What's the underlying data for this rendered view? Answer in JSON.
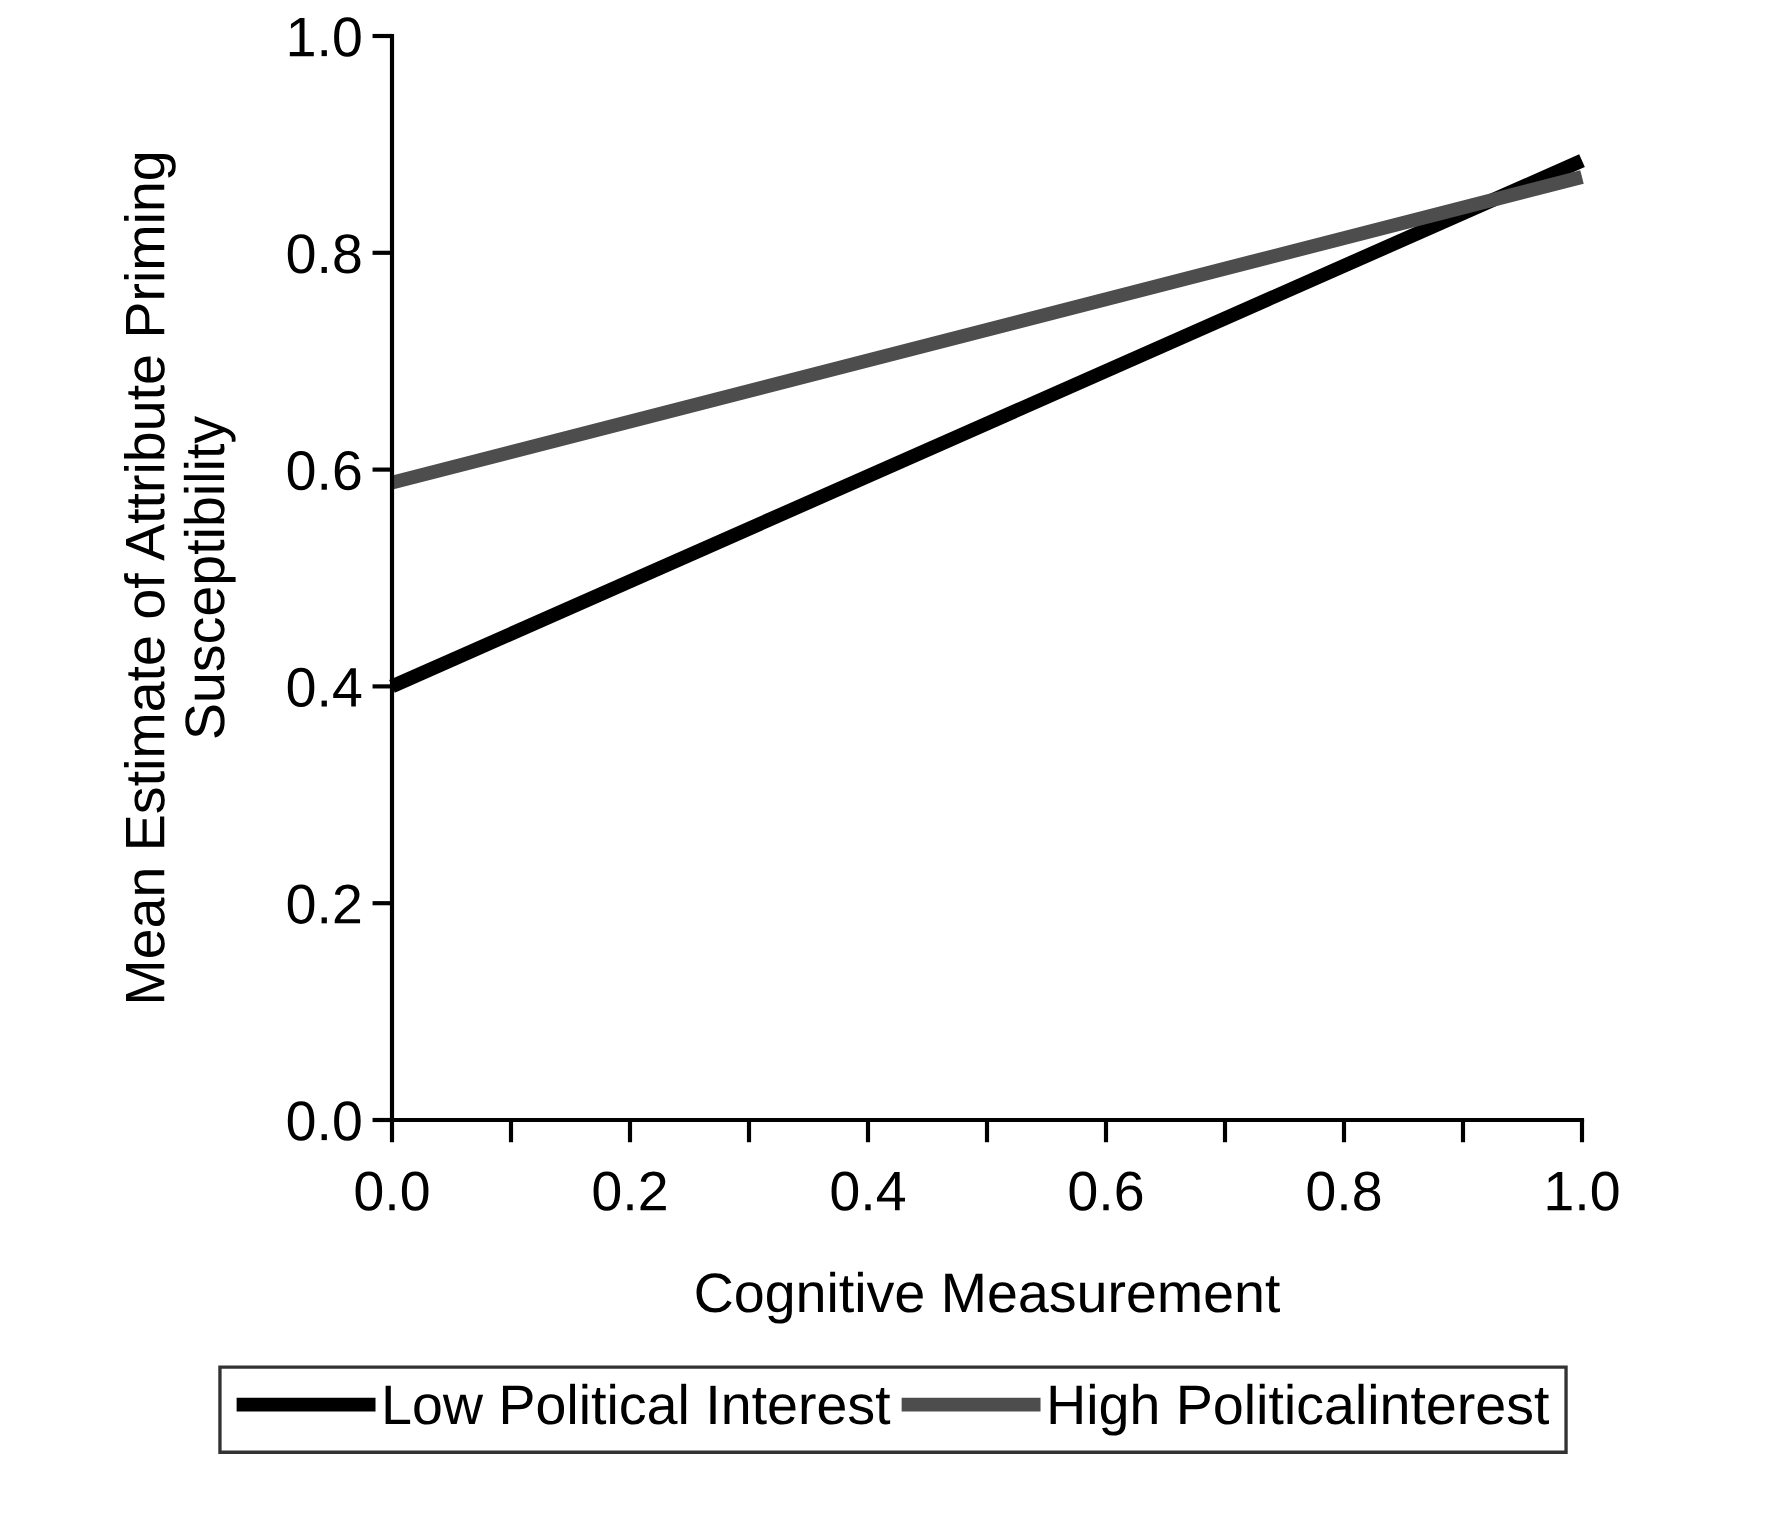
{
  "chart_data": {
    "type": "line",
    "xlabel": "Cognitive Measurement",
    "ylabel": "Mean Estimate of Attribute Priming\nSusceptibility",
    "x": [
      0,
      1
    ],
    "series": [
      {
        "name": "Low Political Interest",
        "color": "#000000",
        "values": [
          0.4,
          0.885
        ]
      },
      {
        "name": "High Politicalinterest",
        "color": "#4d4d4d",
        "values": [
          0.588,
          0.87
        ]
      }
    ],
    "xlim": [
      0,
      1
    ],
    "ylim": [
      0,
      1
    ],
    "xticks": [
      {
        "value": 0.0,
        "label": "0.0"
      },
      {
        "value": 0.1,
        "label": null
      },
      {
        "value": 0.2,
        "label": "0.2"
      },
      {
        "value": 0.3,
        "label": null
      },
      {
        "value": 0.4,
        "label": "0.4"
      },
      {
        "value": 0.5,
        "label": null
      },
      {
        "value": 0.6,
        "label": "0.6"
      },
      {
        "value": 0.7,
        "label": null
      },
      {
        "value": 0.8,
        "label": "0.8"
      },
      {
        "value": 0.9,
        "label": null
      },
      {
        "value": 1.0,
        "label": "1.0"
      }
    ],
    "yticks": [
      {
        "value": 0.0,
        "label": "0.0"
      },
      {
        "value": 0.2,
        "label": "0.2"
      },
      {
        "value": 0.4,
        "label": "0.4"
      },
      {
        "value": 0.6,
        "label": "0.6"
      },
      {
        "value": 0.8,
        "label": "0.8"
      },
      {
        "value": 1.0,
        "label": "1.0"
      }
    ],
    "grid": false,
    "legend": "bottom",
    "marker": "none",
    "line_style": "solid"
  }
}
